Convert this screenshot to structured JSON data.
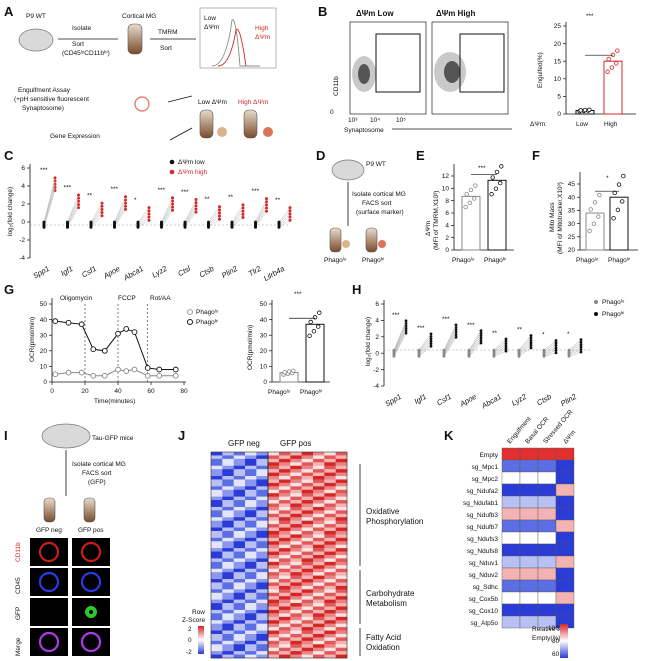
{
  "panels": {
    "A": {
      "label": "A",
      "p9wt": "P9 WT",
      "isolate": "Isolate",
      "sort_marker": "(CD45ˡᵒCD11bʰⁱ)",
      "sort": "Sort",
      "cortical_mg": "Cortical MG",
      "tmrm": "TMRM",
      "sort2": "Sort",
      "low": "Low",
      "dpsi_low": "ΔΨm",
      "high": "High",
      "dpsi_high": "ΔΨm",
      "engulfment_assay": "Engulfment Assay",
      "ph_sensitive": "(+pH sensitive fluorescent",
      "synaptosome": "Synaptosome)",
      "low_dpsim": "Low ΔΨm",
      "high_dpsim": "High ΔΨm",
      "gene_expression": "Gene Expression"
    },
    "B": {
      "label": "B",
      "low_title": "ΔΨm Low",
      "high_title": "ΔΨm High",
      "ylabel": "CD11b",
      "xlabel": "Synaptosome",
      "ticks": [
        "0",
        "10³",
        "10⁴",
        "10⁵"
      ],
      "bar_ylabel": "Engulfed(%)",
      "bar_yticks": [
        "0",
        "5",
        "10",
        "15",
        "20",
        "25"
      ],
      "xlabel_prefix": "ΔΨm:",
      "x_low": "Low",
      "x_high": "High",
      "sig": "***"
    },
    "C": {
      "label": "C",
      "legend_low": "ΔΨm low",
      "legend_high": "ΔΨm high",
      "ylabel": "log₂(fold change)",
      "yticks": [
        "-4",
        "-2",
        "0",
        "2",
        "4",
        "6"
      ],
      "sigs": [
        "***",
        "***",
        "**",
        "***",
        "*",
        "***",
        "***",
        "**",
        "**",
        "***",
        "**"
      ]
    },
    "D": {
      "label": "D",
      "p9wt": "P9 WT",
      "isolate": "Isolate cortical MG",
      "facs": "FACS sort",
      "surface": "(surface marker)",
      "phago_lo": "Phagoˡᵒ",
      "phago_hi": "Phagoʰⁱ"
    },
    "E": {
      "label": "E",
      "ylabel_1": "ΔΨm",
      "ylabel_2": "(MFI of TMRM,X10³)",
      "yticks": [
        "0",
        "2",
        "4",
        "6",
        "8",
        "10",
        "12"
      ],
      "x_lo": "Phagoˡᵒ",
      "x_hi": "Phagoʰⁱ",
      "sig": "***"
    },
    "F": {
      "label": "F",
      "ylabel_1": "Mito Mass",
      "ylabel_2": "(MFI of Mitotracker,X10³)",
      "yticks": [
        "20",
        "25",
        "30",
        "35",
        "40",
        "45"
      ],
      "x_lo": "Phagoˡᵒ",
      "x_hi": "Phagoʰⁱ",
      "sig": "*"
    },
    "G": {
      "label": "G",
      "oligomycin": "Oligomycin",
      "fccp": "FCCP",
      "rotaa": "Rot/AA",
      "legend_lo": "Phagoˡᵒ",
      "legend_hi": "Phagoʰⁱ",
      "ylabel": "OCR(pmol/min)",
      "xlabel": "Time(minutes)",
      "yticks": [
        "0",
        "10",
        "20",
        "30",
        "40",
        "50"
      ],
      "xticks": [
        "0",
        "20",
        "40",
        "60",
        "80"
      ],
      "bar_ylabel": "OCR(pmol/min)",
      "bar_yticks": [
        "0",
        "10",
        "20",
        "30",
        "40",
        "50"
      ],
      "x_lo": "Phagoˡᵒ",
      "x_hi": "Phagoʰⁱ",
      "sig": "***"
    },
    "H": {
      "label": "H",
      "legend_lo": "Phagoˡᵒ",
      "legend_hi": "Phagoʰⁱ",
      "ylabel": "log₂(fold change)",
      "yticks": [
        "-4",
        "-2",
        "0",
        "2",
        "4",
        "6"
      ],
      "genes": [
        "Spp1",
        "Igf1",
        "Csf1",
        "Apoe",
        "Abca1",
        "Lyz2",
        "Ctsb",
        "Plin2"
      ],
      "sigs": [
        "***",
        "***",
        "***",
        "***",
        "**",
        "**",
        "*",
        "*"
      ]
    },
    "I": {
      "label": "I",
      "mice": "Tau-GFP mice",
      "isolate": "Isolate cortical MG",
      "facs": "FACS sort",
      "gfp": "(GFP)",
      "gfp_neg": "GFP neg",
      "gfp_pos": "GFP pos",
      "row_labels": [
        "CD11b",
        "CD45",
        "GFP",
        "Merge"
      ]
    },
    "J": {
      "label": "J",
      "col_neg": "GFP neg",
      "col_pos": "GFP pos",
      "group1_a": "Oxidative",
      "group1_b": "Phosphorylation",
      "group2_a": "Carbohydrate",
      "group2_b": "Metabolism",
      "group3_a": "Fatty Acid",
      "group3_b": "Oxidation",
      "legend_1": "Row",
      "legend_2": "Z-Score",
      "legend_ticks": [
        "2",
        "0",
        "-2"
      ]
    },
    "K": {
      "label": "K",
      "cols": [
        "Engulfment",
        "Basal OCR",
        "Stressed OCR",
        "ΔΨm"
      ],
      "rows": [
        "Empty",
        "sg_Mpc1",
        "sg_Mpc2",
        "sg_Ndufa2",
        "sg_Ndufab1",
        "sg_Ndufb3",
        "sg_Ndufb7",
        "sg_Ndufs3",
        "sg_Ndufs8",
        "sg_Nduv1",
        "sg_Nduv2",
        "sg_Sdhc",
        "sg_Cox5b",
        "sg_Cox10",
        "sg_Atp5o"
      ],
      "legend_1": "Relative to",
      "legend_2": "Empty(%)",
      "legend_ticks": [
        "100",
        "80",
        "60"
      ]
    }
  },
  "colors": {
    "red": "#d62728",
    "black": "#111111",
    "grey": "#888888",
    "blue": "#2b3bd6"
  },
  "chart_data": [
    {
      "type": "bar",
      "id": "B_bar",
      "categories": [
        "Low",
        "High"
      ],
      "values": [
        1,
        15
      ],
      "ylim": [
        0,
        25
      ],
      "ylabel": "Engulfed(%)",
      "xlabel": "ΔΨm:"
    },
    {
      "type": "line",
      "id": "C_genes",
      "genes": [
        "Spp1",
        "Igf1",
        "Csf1",
        "Apoe",
        "Abca1",
        "Lyz2",
        "Ctsl",
        "Ctsb",
        "Plin2",
        "Tlr2",
        "Lilrb4a"
      ],
      "series": [
        {
          "name": "ΔΨm low",
          "values": [
            0,
            0,
            0,
            0,
            0,
            0,
            0,
            0,
            0,
            0,
            0
          ]
        },
        {
          "name": "ΔΨm high",
          "values": [
            4.2,
            2.3,
            1.4,
            2.1,
            0.9,
            2.0,
            1.8,
            1.0,
            1.2,
            1.9,
            0.9
          ]
        }
      ],
      "ylim": [
        -4,
        6
      ],
      "ylabel": "log₂(fold change)"
    },
    {
      "type": "bar",
      "id": "E_bar",
      "categories": [
        "Phagoˡᵒ",
        "Phagoʰⁱ"
      ],
      "values": [
        8.7,
        11.3
      ],
      "ylim": [
        0,
        12
      ]
    },
    {
      "type": "bar",
      "id": "F_bar",
      "categories": [
        "Phagoˡᵒ",
        "Phagoʰⁱ"
      ],
      "values": [
        34,
        40
      ],
      "ylim": [
        20,
        45
      ]
    },
    {
      "type": "line",
      "id": "G_ocr",
      "x": [
        2,
        10,
        18,
        25,
        32,
        40,
        45,
        50,
        58,
        65,
        75
      ],
      "series": [
        {
          "name": "Phagoˡᵒ",
          "values": [
            5,
            6,
            6,
            4,
            4,
            8,
            7,
            8,
            4,
            4,
            4
          ]
        },
        {
          "name": "Phagoʰⁱ",
          "values": [
            39,
            38,
            37,
            21,
            20,
            31,
            34,
            32,
            9,
            8,
            8
          ]
        }
      ],
      "ylim": [
        0,
        50
      ],
      "xlim": [
        0,
        80
      ],
      "ylabel": "OCR(pmol/min)",
      "xlabel": "Time(minutes)"
    },
    {
      "type": "bar",
      "id": "G_bar",
      "categories": [
        "Phagoˡᵒ",
        "Phagoʰⁱ"
      ],
      "values": [
        6,
        37
      ],
      "ylim": [
        0,
        50
      ]
    },
    {
      "type": "line",
      "id": "H_genes",
      "genes": [
        "Spp1",
        "Igf1",
        "Csf1",
        "Apoe",
        "Abca1",
        "Lyz2",
        "Ctsb",
        "Plin2"
      ],
      "series": [
        {
          "name": "Phagoˡᵒ",
          "values": [
            0,
            0,
            0,
            0,
            0,
            0,
            0,
            0
          ]
        },
        {
          "name": "Phagoʰⁱ",
          "values": [
            3.2,
            1.6,
            2.7,
            2.0,
            1.0,
            1.4,
            0.8,
            0.9
          ]
        }
      ],
      "ylim": [
        -4,
        6
      ]
    }
  ]
}
